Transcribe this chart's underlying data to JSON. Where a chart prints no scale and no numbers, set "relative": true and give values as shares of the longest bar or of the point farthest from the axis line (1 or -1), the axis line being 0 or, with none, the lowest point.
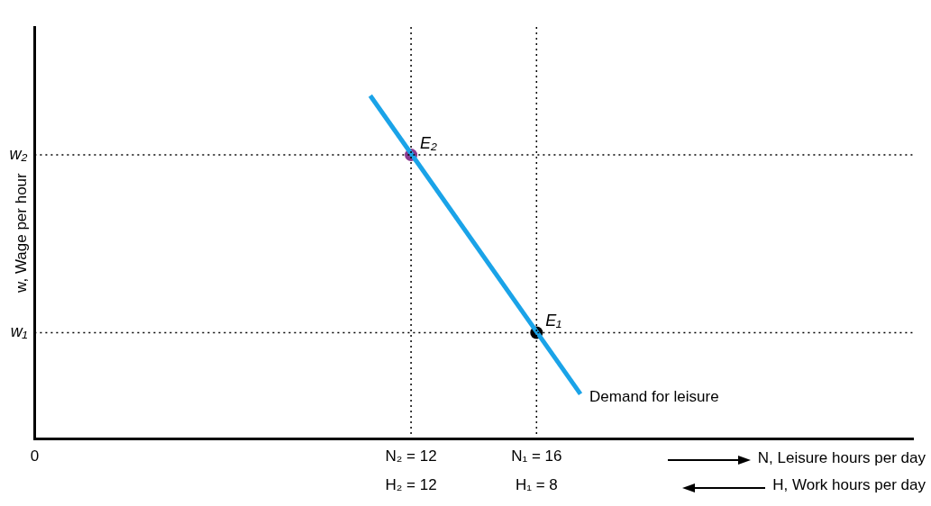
{
  "chart_data": {
    "type": "line",
    "ylabel": "w, Wage per hour",
    "xlabel": "N, Leisure hours per day",
    "x2label": "H, Work hours per day",
    "relative": true,
    "xlim": [
      0,
      28
    ],
    "xticks": [
      0,
      {
        "value": 12,
        "label": "N₂ = 12"
      },
      {
        "value": 16,
        "label": "N₁ = 16"
      }
    ],
    "x2lim": [
      24,
      -4
    ],
    "x2ticks": [
      {
        "value": 12,
        "label": "H₂ = 12"
      },
      {
        "value": 8,
        "label": "H₁ = 8"
      }
    ],
    "grid": false,
    "legend": false,
    "series": [
      {
        "name": "Demand for leisure",
        "type": "line",
        "color": "#1aa3e8",
        "x": [
          10.7,
          17.4
        ],
        "values": [
          1,
          0.13
        ],
        "marker": "none"
      },
      {
        "name": "E₂",
        "type": "scatter",
        "color": "#8b3a8f",
        "x": [
          12
        ],
        "values": [
          0.827
        ],
        "marker": "circle"
      },
      {
        "name": "E₁",
        "type": "scatter",
        "color": "#000000",
        "x": [
          16
        ],
        "values": [
          0.309
        ],
        "marker": "circle"
      }
    ],
    "ref_lines": [
      {
        "axis": "x",
        "value": 12,
        "line_style": "dotted",
        "color": "#000000"
      },
      {
        "axis": "x",
        "value": 16,
        "line_style": "dotted",
        "color": "#000000"
      },
      {
        "axis": "y",
        "value": 0.827,
        "label": "w₂",
        "line_style": "dotted",
        "color": "#000000"
      },
      {
        "axis": "y",
        "value": 0.309,
        "label": "w₁",
        "line_style": "dotted",
        "color": "#000000"
      }
    ]
  }
}
